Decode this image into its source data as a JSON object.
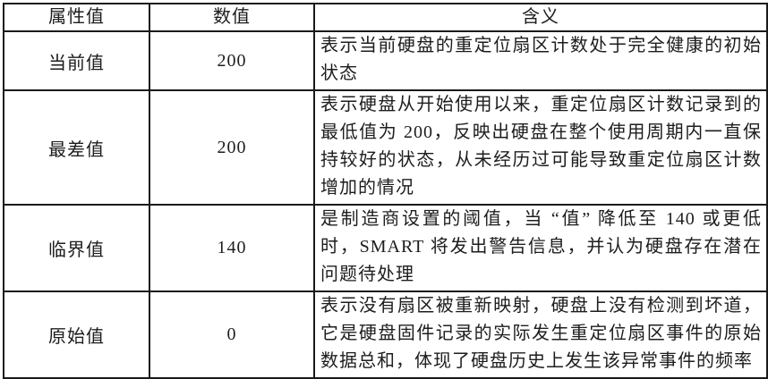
{
  "table": {
    "columns": {
      "attr": "属性值",
      "value": "数值",
      "meaning": "含义"
    },
    "rows": [
      {
        "attr": "当前值",
        "value": "200",
        "meaning": "表示当前硬盘的重定位扇区计数处于完全健康的初始状态"
      },
      {
        "attr": "最差值",
        "value": "200",
        "meaning": "表示硬盘从开始使用以来，重定位扇区计数记录到的最低值为 200，反映出硬盘在整个使用周期内一直保持较好的状态，从未经历过可能导致重定位扇区计数增加的情况"
      },
      {
        "attr": "临界值",
        "value": "140",
        "meaning": "是制造商设置的阈值，当 “值” 降低至 140 或更低时，SMART 将发出警告信息，并认为硬盘存在潜在问题待处理"
      },
      {
        "attr": "原始值",
        "value": "0",
        "meaning": "表示没有扇区被重新映射，硬盘上没有检测到坏道，它是硬盘固件记录的实际发生重定位扇区事件的原始数据总和，体现了硬盘历史上发生该异常事件的频率"
      }
    ]
  }
}
